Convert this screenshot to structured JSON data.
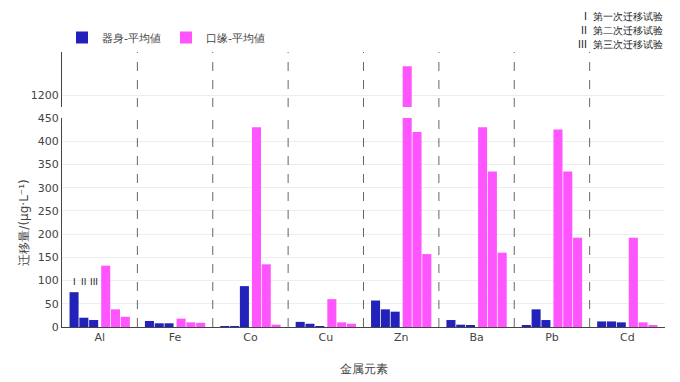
{
  "chart_data": {
    "type": "bar",
    "xlabel": "金属元素",
    "ylabel": "迁移量/(μg·L⁻¹)",
    "categories": [
      "Al",
      "Fe",
      "Co",
      "Cu",
      "Zn",
      "Ba",
      "Pb",
      "Cd"
    ],
    "series": [
      {
        "name": "器身-平均値",
        "color": "#2222bb",
        "values": [
          [
            75,
            20,
            15
          ],
          [
            13,
            8,
            8
          ],
          [
            2,
            2,
            88
          ],
          [
            11,
            7,
            2
          ],
          [
            57,
            38,
            33
          ],
          [
            15,
            5,
            4
          ],
          [
            4,
            38,
            15
          ],
          [
            12,
            12,
            10
          ]
        ]
      },
      {
        "name": "口缘-平均値",
        "color": "#ff55ff",
        "values": [
          [
            132,
            38,
            22
          ],
          [
            18,
            10,
            9
          ],
          [
            430,
            135,
            5
          ],
          [
            60,
            10,
            7
          ],
          [
            1320,
            420,
            157
          ],
          [
            430,
            335,
            160
          ],
          [
            425,
            335,
            192
          ],
          [
            192,
            10,
            4
          ]
        ]
      }
    ],
    "ylim": [
      0,
      450
    ],
    "yticks": [
      0,
      50,
      100,
      150,
      200,
      250,
      300,
      350,
      400,
      450
    ],
    "ylim_upper": [
      1150,
      1380
    ],
    "yticks_upper": [
      1200
    ],
    "grid": true,
    "legend": "upper left",
    "annotations": {
      "category": "Al",
      "series": "器身-平均値",
      "texts": [
        "I",
        "II",
        "III"
      ]
    },
    "notes": [
      "I  第一次迁移试验",
      "II  第二次迁移试验",
      "III  第三次迁移试验"
    ]
  }
}
